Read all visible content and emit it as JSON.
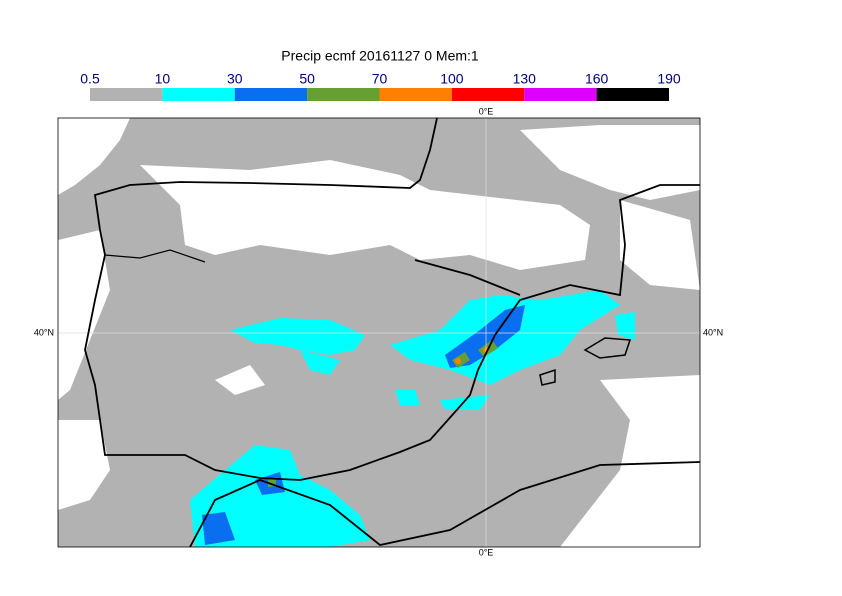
{
  "title": "Precip ecmf 20161127 0 Mem:1",
  "legend": {
    "levels": [
      0.5,
      10,
      30,
      50,
      70,
      100,
      130,
      160,
      190
    ],
    "colors": [
      "#b2b2b2",
      "#00ffff",
      "#0a6ef0",
      "#66a033",
      "#ff8000",
      "#ff0000",
      "#dd00ff",
      "#000000"
    ]
  },
  "labels": {
    "top": "0°E",
    "bottom": "0°E",
    "left": "40°N",
    "right": "40°N"
  }
}
